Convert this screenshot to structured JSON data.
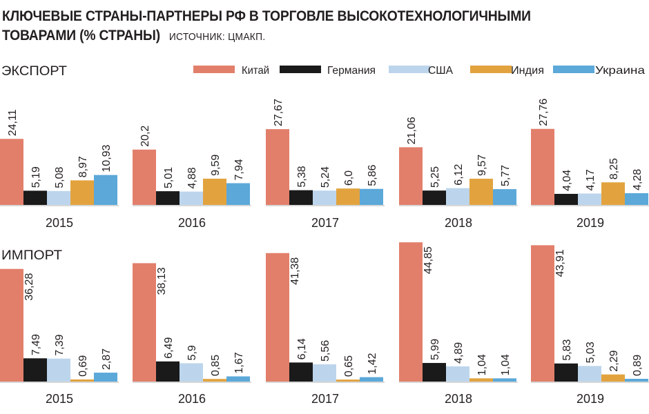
{
  "header": {
    "title_line1": "КЛЮЧЕВЫЕ СТРАНЫ-ПАРТНЕРЫ РФ В ТОРГОВЛЕ  ВЫСОКОТЕХНОЛОГИЧНЫМИ",
    "title_line2": "ТОВАРАМИ (% СТРАНЫ)",
    "source": "ИСТОЧНИК: ЦМАКП."
  },
  "chart_data": {
    "type": "bar",
    "categories": [
      "2015",
      "2016",
      "2017",
      "2018",
      "2019"
    ],
    "legend": [
      {
        "name": "Китай",
        "color": "#e27f6b"
      },
      {
        "name": "Германия",
        "color": "#1a1a1a"
      },
      {
        "name": "США",
        "color": "#bcd5ec"
      },
      {
        "name": "Индия",
        "color": "#e2a33f"
      },
      {
        "name": "Украина",
        "color": "#5ba8d9"
      }
    ],
    "panels": [
      {
        "title": "ЭКСПОРТ",
        "labels": [
          [
            "24,11",
            "5,19",
            "5,08",
            "8,97",
            "10,93"
          ],
          [
            "20,2",
            "5,01",
            "4,88",
            "9,59",
            "7,94"
          ],
          [
            "27,67",
            "5,38",
            "5,24",
            "6,0",
            "5,86"
          ],
          [
            "21,06",
            "5,25",
            "6,12",
            "9,57",
            "5,77"
          ],
          [
            "27,76",
            "4,04",
            "4,17",
            "8,25",
            "4,28"
          ]
        ],
        "values": [
          [
            24.11,
            5.19,
            5.08,
            8.97,
            10.93
          ],
          [
            20.2,
            5.01,
            4.88,
            9.59,
            7.94
          ],
          [
            27.67,
            5.38,
            5.24,
            6.0,
            5.86
          ],
          [
            21.06,
            5.25,
            6.12,
            9.57,
            5.77
          ],
          [
            27.76,
            4.04,
            4.17,
            8.25,
            4.28
          ]
        ]
      },
      {
        "title": "ИМПОРТ",
        "labels": [
          [
            "36,28",
            "7,49",
            "7,39",
            "0,69",
            "2,87"
          ],
          [
            "38,13",
            "6,49",
            "5,9",
            "0,85",
            "1,67"
          ],
          [
            "41,38",
            "6,14",
            "5,56",
            "0,65",
            "1,42"
          ],
          [
            "44,85",
            "5,99",
            "4,89",
            "1,04",
            "1,04"
          ],
          [
            "43,91",
            "5,83",
            "5,03",
            "2,29",
            "0,89"
          ]
        ],
        "values": [
          [
            36.28,
            7.49,
            7.39,
            0.69,
            2.87
          ],
          [
            38.13,
            6.49,
            5.9,
            0.85,
            1.67
          ],
          [
            41.38,
            6.14,
            5.56,
            0.65,
            1.42
          ],
          [
            44.85,
            5.99,
            4.89,
            1.04,
            1.04
          ],
          [
            43.91,
            5.83,
            5.03,
            2.29,
            0.89
          ]
        ]
      }
    ]
  }
}
